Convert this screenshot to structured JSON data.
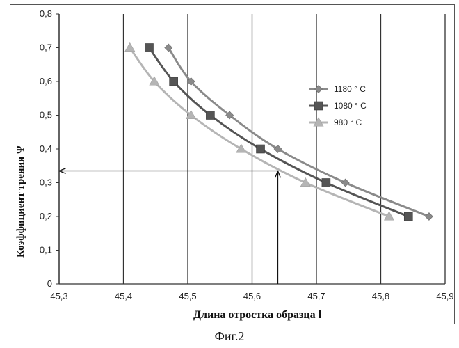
{
  "caption": "Фиг.2",
  "chart_data": {
    "type": "line",
    "xlabel": "Длина отростка образца l",
    "ylabel": "Коэффициент трения Ψ",
    "xlim": [
      45.3,
      45.9
    ],
    "ylim": [
      0,
      0.8
    ],
    "x_ticks": [
      "45,3",
      "45,4",
      "45,5",
      "45,6",
      "45,7",
      "45,8",
      "45,9"
    ],
    "y_ticks": [
      "0",
      "0,1",
      "0,2",
      "0,3",
      "0,4",
      "0,5",
      "0,6",
      "0,7",
      "0,8"
    ],
    "grid": "vertical",
    "legend_position": "right",
    "series": [
      {
        "name": "1180 ° C",
        "marker": "diamond",
        "color": "#8a8a8a",
        "points": [
          [
            45.47,
            0.7
          ],
          [
            45.505,
            0.6
          ],
          [
            45.565,
            0.5
          ],
          [
            45.64,
            0.4
          ],
          [
            45.745,
            0.3
          ],
          [
            45.875,
            0.2
          ]
        ]
      },
      {
        "name": "1080 ° C",
        "marker": "square",
        "color": "#555555",
        "points": [
          [
            45.44,
            0.7
          ],
          [
            45.478,
            0.6
          ],
          [
            45.535,
            0.5
          ],
          [
            45.613,
            0.4
          ],
          [
            45.715,
            0.3
          ],
          [
            45.843,
            0.2
          ]
        ]
      },
      {
        "name": "980 ° C",
        "marker": "triangle",
        "color": "#b5b5b5",
        "points": [
          [
            45.41,
            0.7
          ],
          [
            45.448,
            0.6
          ],
          [
            45.505,
            0.5
          ],
          [
            45.583,
            0.4
          ],
          [
            45.683,
            0.3
          ],
          [
            45.813,
            0.2
          ]
        ]
      }
    ],
    "annotation": {
      "type": "arrow-path",
      "from": [
        45.64,
        0.0
      ],
      "corner": [
        45.64,
        0.335
      ],
      "to": [
        45.3,
        0.335
      ]
    }
  }
}
